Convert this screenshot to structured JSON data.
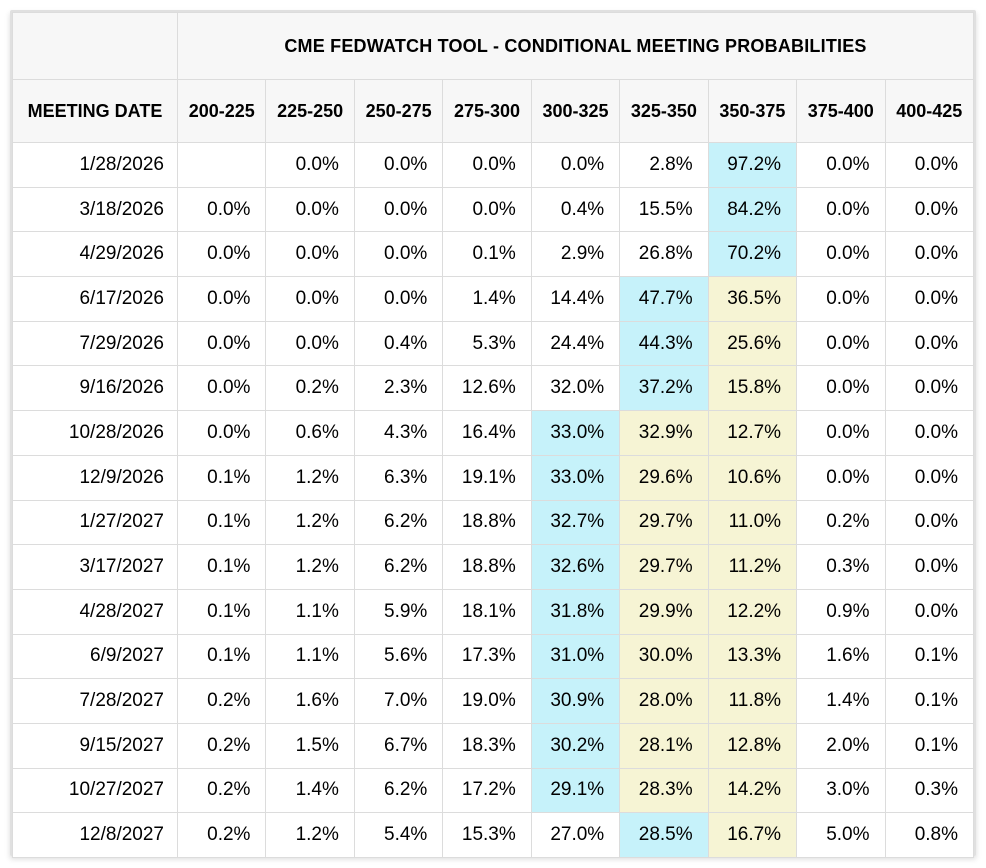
{
  "title": "CME FEDWATCH TOOL - CONDITIONAL MEETING PROBABILITIES",
  "columns": [
    "MEETING DATE",
    "200-225",
    "225-250",
    "250-275",
    "275-300",
    "300-325",
    "325-350",
    "350-375",
    "375-400",
    "400-425"
  ],
  "rows": [
    {
      "date": "1/28/2026",
      "values": [
        "",
        "0.0%",
        "0.0%",
        "0.0%",
        "0.0%",
        "2.8%",
        "97.2%",
        "0.0%",
        "0.0%"
      ],
      "hl": [
        "",
        "",
        "",
        "",
        "",
        "",
        "b",
        "",
        ""
      ]
    },
    {
      "date": "3/18/2026",
      "values": [
        "0.0%",
        "0.0%",
        "0.0%",
        "0.0%",
        "0.4%",
        "15.5%",
        "84.2%",
        "0.0%",
        "0.0%"
      ],
      "hl": [
        "",
        "",
        "",
        "",
        "",
        "",
        "b",
        "",
        ""
      ]
    },
    {
      "date": "4/29/2026",
      "values": [
        "0.0%",
        "0.0%",
        "0.0%",
        "0.1%",
        "2.9%",
        "26.8%",
        "70.2%",
        "0.0%",
        "0.0%"
      ],
      "hl": [
        "",
        "",
        "",
        "",
        "",
        "",
        "b",
        "",
        ""
      ]
    },
    {
      "date": "6/17/2026",
      "values": [
        "0.0%",
        "0.0%",
        "0.0%",
        "1.4%",
        "14.4%",
        "47.7%",
        "36.5%",
        "0.0%",
        "0.0%"
      ],
      "hl": [
        "",
        "",
        "",
        "",
        "",
        "b",
        "y",
        "",
        ""
      ]
    },
    {
      "date": "7/29/2026",
      "values": [
        "0.0%",
        "0.0%",
        "0.4%",
        "5.3%",
        "24.4%",
        "44.3%",
        "25.6%",
        "0.0%",
        "0.0%"
      ],
      "hl": [
        "",
        "",
        "",
        "",
        "",
        "b",
        "y",
        "",
        ""
      ]
    },
    {
      "date": "9/16/2026",
      "values": [
        "0.0%",
        "0.2%",
        "2.3%",
        "12.6%",
        "32.0%",
        "37.2%",
        "15.8%",
        "0.0%",
        "0.0%"
      ],
      "hl": [
        "",
        "",
        "",
        "",
        "",
        "b",
        "y",
        "",
        ""
      ]
    },
    {
      "date": "10/28/2026",
      "values": [
        "0.0%",
        "0.6%",
        "4.3%",
        "16.4%",
        "33.0%",
        "32.9%",
        "12.7%",
        "0.0%",
        "0.0%"
      ],
      "hl": [
        "",
        "",
        "",
        "",
        "b",
        "y",
        "y",
        "",
        ""
      ]
    },
    {
      "date": "12/9/2026",
      "values": [
        "0.1%",
        "1.2%",
        "6.3%",
        "19.1%",
        "33.0%",
        "29.6%",
        "10.6%",
        "0.0%",
        "0.0%"
      ],
      "hl": [
        "",
        "",
        "",
        "",
        "b",
        "y",
        "y",
        "",
        ""
      ]
    },
    {
      "date": "1/27/2027",
      "values": [
        "0.1%",
        "1.2%",
        "6.2%",
        "18.8%",
        "32.7%",
        "29.7%",
        "11.0%",
        "0.2%",
        "0.0%"
      ],
      "hl": [
        "",
        "",
        "",
        "",
        "b",
        "y",
        "y",
        "",
        ""
      ]
    },
    {
      "date": "3/17/2027",
      "values": [
        "0.1%",
        "1.2%",
        "6.2%",
        "18.8%",
        "32.6%",
        "29.7%",
        "11.2%",
        "0.3%",
        "0.0%"
      ],
      "hl": [
        "",
        "",
        "",
        "",
        "b",
        "y",
        "y",
        "",
        ""
      ]
    },
    {
      "date": "4/28/2027",
      "values": [
        "0.1%",
        "1.1%",
        "5.9%",
        "18.1%",
        "31.8%",
        "29.9%",
        "12.2%",
        "0.9%",
        "0.0%"
      ],
      "hl": [
        "",
        "",
        "",
        "",
        "b",
        "y",
        "y",
        "",
        ""
      ]
    },
    {
      "date": "6/9/2027",
      "values": [
        "0.1%",
        "1.1%",
        "5.6%",
        "17.3%",
        "31.0%",
        "30.0%",
        "13.3%",
        "1.6%",
        "0.1%"
      ],
      "hl": [
        "",
        "",
        "",
        "",
        "b",
        "y",
        "y",
        "",
        ""
      ]
    },
    {
      "date": "7/28/2027",
      "values": [
        "0.2%",
        "1.6%",
        "7.0%",
        "19.0%",
        "30.9%",
        "28.0%",
        "11.8%",
        "1.4%",
        "0.1%"
      ],
      "hl": [
        "",
        "",
        "",
        "",
        "b",
        "y",
        "y",
        "",
        ""
      ]
    },
    {
      "date": "9/15/2027",
      "values": [
        "0.2%",
        "1.5%",
        "6.7%",
        "18.3%",
        "30.2%",
        "28.1%",
        "12.8%",
        "2.0%",
        "0.1%"
      ],
      "hl": [
        "",
        "",
        "",
        "",
        "b",
        "y",
        "y",
        "",
        ""
      ]
    },
    {
      "date": "10/27/2027",
      "values": [
        "0.2%",
        "1.4%",
        "6.2%",
        "17.2%",
        "29.1%",
        "28.3%",
        "14.2%",
        "3.0%",
        "0.3%"
      ],
      "hl": [
        "",
        "",
        "",
        "",
        "b",
        "y",
        "y",
        "",
        ""
      ]
    },
    {
      "date": "12/8/2027",
      "values": [
        "0.2%",
        "1.2%",
        "5.4%",
        "15.3%",
        "27.0%",
        "28.5%",
        "16.7%",
        "5.0%",
        "0.8%"
      ],
      "hl": [
        "",
        "",
        "",
        "",
        "",
        "b",
        "y",
        "",
        ""
      ]
    }
  ],
  "colors": {
    "highlight_blue": "#c6f2fa",
    "highlight_yellow": "#f6f4d4",
    "header_bg": "#f7f7f7",
    "border": "#dcdcdc"
  }
}
